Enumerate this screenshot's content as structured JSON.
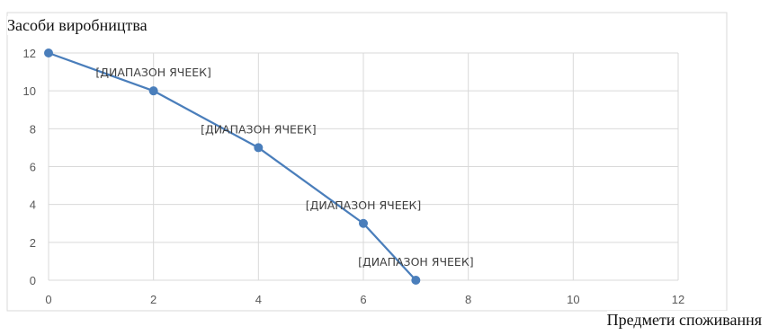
{
  "chart_data": {
    "type": "scatter",
    "style": "markers-with-straight-lines",
    "title": "",
    "xlabel": "Предмети споживання",
    "ylabel": "Засоби виробництва",
    "xlim": [
      0,
      12
    ],
    "ylim": [
      0,
      12
    ],
    "xticks": [
      0,
      2,
      4,
      6,
      8,
      10,
      12
    ],
    "yticks": [
      0,
      2,
      4,
      6,
      8,
      10,
      12
    ],
    "grid": true,
    "legend": "none",
    "series": [
      {
        "color": "#4a7ebb",
        "x": [
          0,
          2,
          4,
          6,
          7
        ],
        "y": [
          12,
          10,
          7,
          3,
          0
        ],
        "data_labels": [
          "",
          "[ДИАПАЗОН ЯЧЕЕК]",
          "[ДИАПАЗОН ЯЧЕЕК]",
          "[ДИАПАЗОН ЯЧЕЕК]",
          "[ДИАПАЗОН ЯЧЕЕК]"
        ]
      }
    ]
  }
}
